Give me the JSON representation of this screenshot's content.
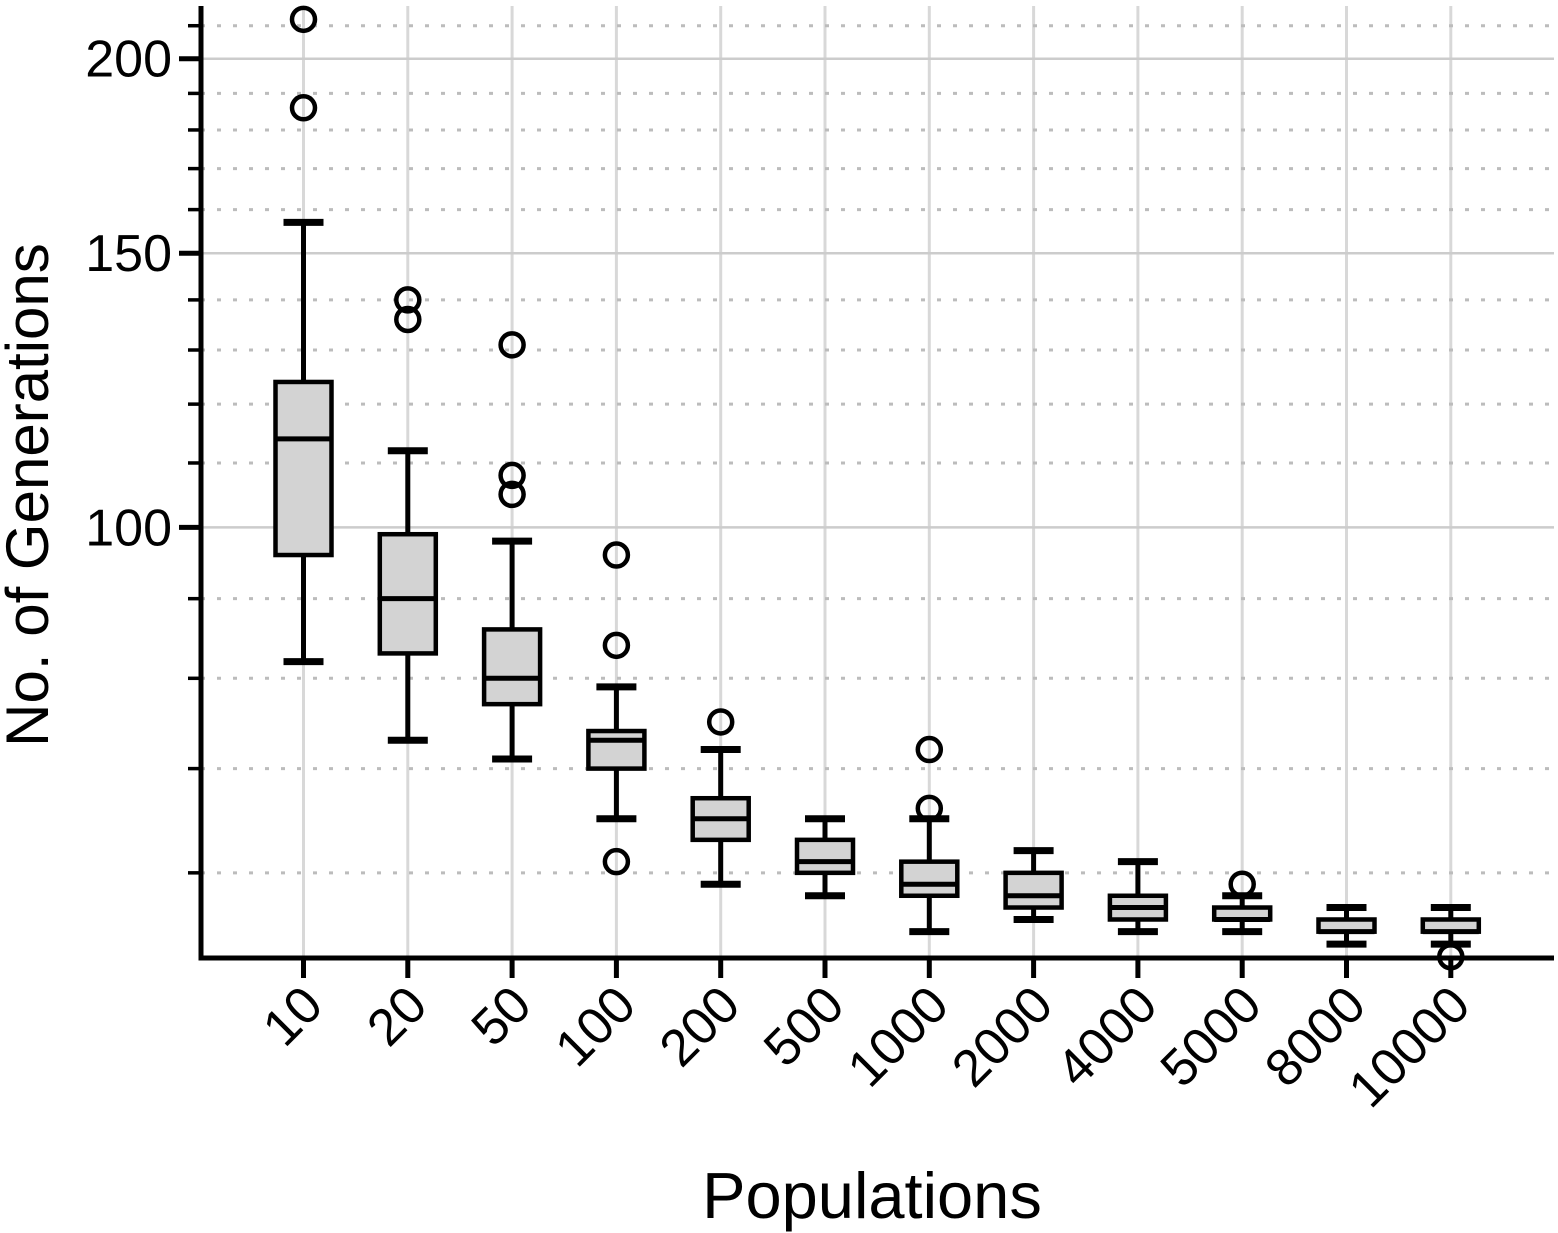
{
  "figure": {
    "background": "#ffffff"
  },
  "chart_data": {
    "type": "boxplot",
    "title": "",
    "xlabel": "Populations",
    "ylabel": "No. of Generations",
    "categories": [
      "10",
      "20",
      "50",
      "100",
      "200",
      "500",
      "1000",
      "2000",
      "4000",
      "5000",
      "8000",
      "10000"
    ],
    "yscale": "log",
    "ylim": [
      52.9,
      216
    ],
    "y_major_ticks": [
      100,
      150,
      200
    ],
    "y_minor_ticks": [
      60,
      70,
      80,
      90,
      110,
      120,
      130,
      140,
      160,
      170,
      180,
      190,
      210
    ],
    "grid": "major-solid-minor-dotted",
    "legend": "none",
    "boxes": [
      {
        "category": "10",
        "whislo": 82,
        "q1": 96,
        "med": 114,
        "q3": 124,
        "whishi": 157,
        "fliers": [
          186,
          212
        ]
      },
      {
        "category": "20",
        "whislo": 73,
        "q1": 83,
        "med": 90,
        "q3": 99,
        "whishi": 112,
        "fliers": [
          136,
          140
        ]
      },
      {
        "category": "50",
        "whislo": 71,
        "q1": 77,
        "med": 80,
        "q3": 86,
        "whishi": 98,
        "fliers": [
          105,
          108,
          131
        ]
      },
      {
        "category": "100",
        "whislo": 65,
        "q1": 70,
        "med": 73,
        "q3": 74,
        "whishi": 79,
        "fliers": [
          61,
          84,
          96
        ]
      },
      {
        "category": "200",
        "whislo": 59,
        "q1": 63,
        "med": 65,
        "q3": 67,
        "whishi": 72,
        "fliers": [
          75
        ]
      },
      {
        "category": "500",
        "whislo": 58,
        "q1": 60,
        "med": 61,
        "q3": 63,
        "whishi": 65,
        "fliers": []
      },
      {
        "category": "1000",
        "whislo": 55,
        "q1": 58,
        "med": 59,
        "q3": 61,
        "whishi": 65,
        "fliers": [
          66,
          72
        ]
      },
      {
        "category": "2000",
        "whislo": 56,
        "q1": 57,
        "med": 58,
        "q3": 60,
        "whishi": 62,
        "fliers": []
      },
      {
        "category": "4000",
        "whislo": 55,
        "q1": 56,
        "med": 57,
        "q3": 58,
        "whishi": 61,
        "fliers": []
      },
      {
        "category": "5000",
        "whislo": 55,
        "q1": 56,
        "med": 56,
        "q3": 57,
        "whishi": 58,
        "fliers": [
          59
        ]
      },
      {
        "category": "8000",
        "whislo": 54,
        "q1": 55,
        "med": 55,
        "q3": 56,
        "whishi": 57,
        "fliers": []
      },
      {
        "category": "10000",
        "whislo": 54,
        "q1": 55,
        "med": 55,
        "q3": 56,
        "whishi": 57,
        "fliers": [
          53
        ]
      }
    ],
    "style": {
      "box_fill": "#d3d3d3",
      "line_color": "#000000",
      "grid_solid_color": "#cccccc",
      "grid_vertical_color": "#d8d8d8",
      "grid_dotted_color": "#bcbcbc",
      "flier_marker": "open-circle"
    }
  }
}
